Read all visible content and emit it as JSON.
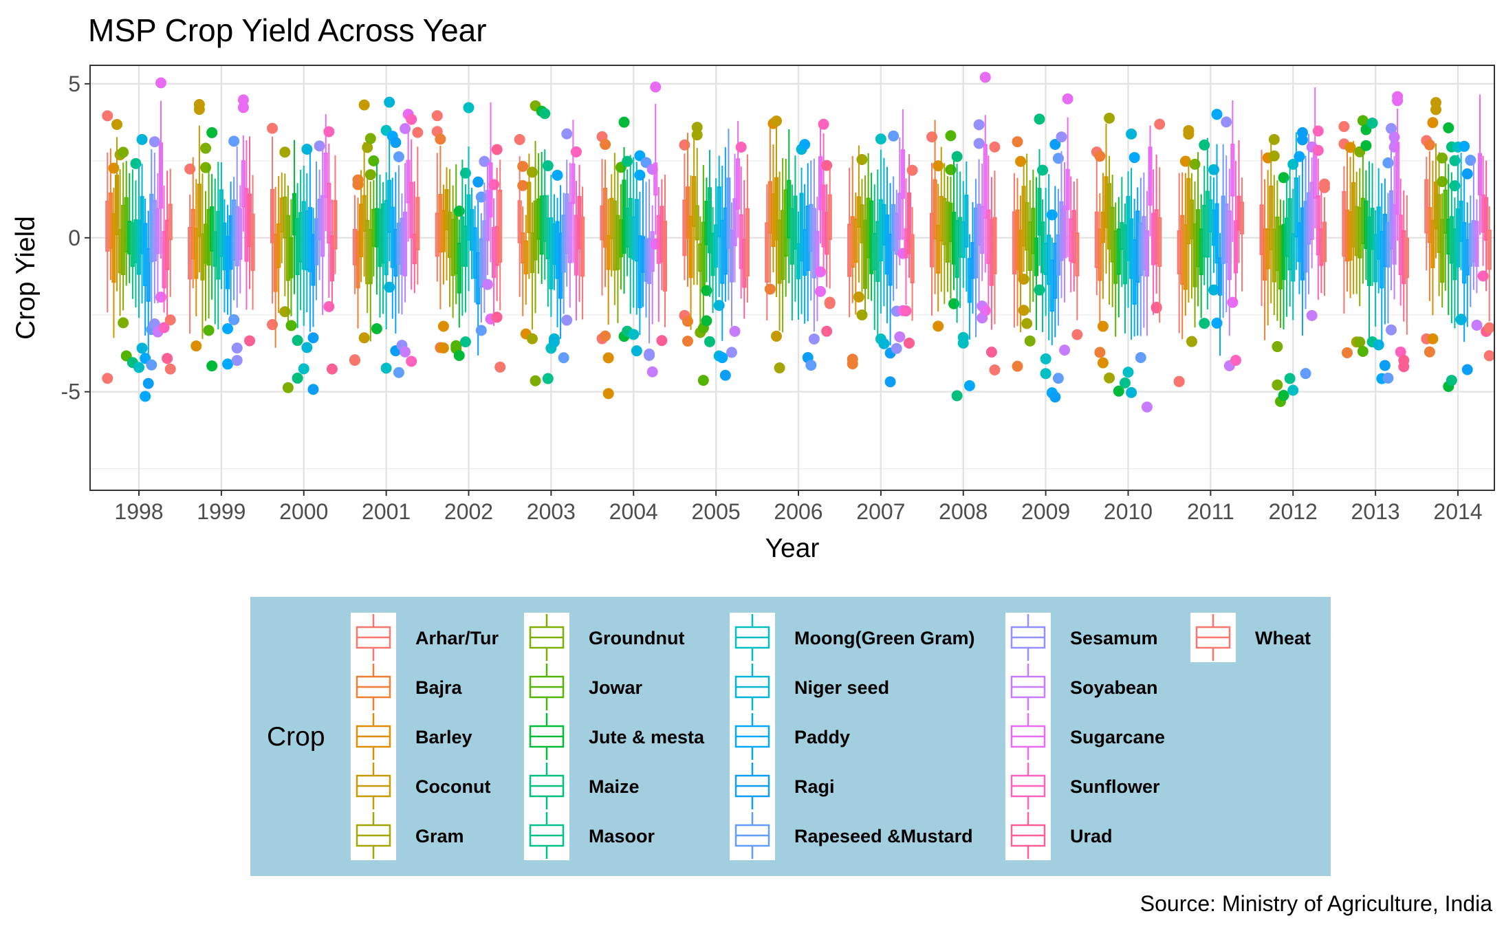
{
  "chart_data": {
    "type": "boxplot",
    "title": "MSP Crop Yield Across Year",
    "xlabel": "Year",
    "ylabel": "Crop Yield",
    "caption": "Source: Ministry of Agriculture, India",
    "categories": [
      "1998",
      "1999",
      "2000",
      "2001",
      "2002",
      "2003",
      "2004",
      "2005",
      "2006",
      "2007",
      "2008",
      "2009",
      "2010",
      "2011",
      "2012",
      "2013",
      "2014"
    ],
    "ylim": [
      -8.2,
      5.6
    ],
    "yticks": [
      -5,
      0,
      5
    ],
    "grid": true,
    "legend": {
      "title": "Crop",
      "position": "bottom",
      "columns": 5
    },
    "series": [
      {
        "name": "Arhar/Tur",
        "color": "#F8766D"
      },
      {
        "name": "Bajra",
        "color": "#EE7D36"
      },
      {
        "name": "Barley",
        "color": "#DC8E00"
      },
      {
        "name": "Coconut",
        "color": "#C49A00"
      },
      {
        "name": "Gram",
        "color": "#A3A500"
      },
      {
        "name": "Groundnut",
        "color": "#7CAE00"
      },
      {
        "name": "Jowar",
        "color": "#53B400"
      },
      {
        "name": "Jute & mesta",
        "color": "#00BA38"
      },
      {
        "name": "Maize",
        "color": "#00BF7D"
      },
      {
        "name": "Masoor",
        "color": "#00C08B"
      },
      {
        "name": "Moong(Green Gram)",
        "color": "#00BFC4"
      },
      {
        "name": "Niger seed",
        "color": "#00B4D8"
      },
      {
        "name": "Paddy",
        "color": "#00A9FF"
      },
      {
        "name": "Ragi",
        "color": "#0C9EF7"
      },
      {
        "name": "Rapeseed &Mustard",
        "color": "#619CFF"
      },
      {
        "name": "Sesamum",
        "color": "#9590FF"
      },
      {
        "name": "Soyabean",
        "color": "#C77CFF"
      },
      {
        "name": "Sugarcane",
        "color": "#E76BF3"
      },
      {
        "name": "Sunflower",
        "color": "#FF62BC"
      },
      {
        "name": "Urad",
        "color": "#FD5F92"
      },
      {
        "name": "Wheat",
        "color": "#F8766D"
      }
    ]
  }
}
